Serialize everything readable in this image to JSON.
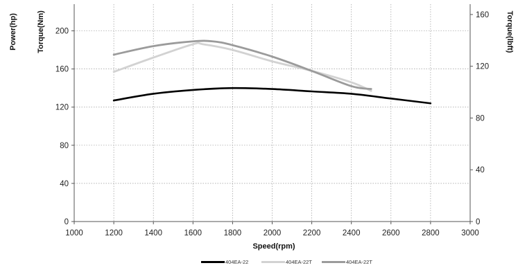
{
  "chart_data": {
    "type": "line",
    "xlabel": "Speed(rpm)",
    "ylabel_outer": "Power(hp)",
    "ylabel_left": "Torque(Nm)",
    "ylabel_right": "Torque(lbft)",
    "xlim": [
      1000,
      3000
    ],
    "x_ticks": [
      1000,
      1200,
      1400,
      1600,
      1800,
      2000,
      2200,
      2400,
      2600,
      2800,
      3000
    ],
    "ylim_left": [
      0,
      228
    ],
    "y_ticks_left": [
      0,
      40,
      80,
      120,
      160,
      200
    ],
    "ylim_right": [
      0,
      168
    ],
    "y_ticks_right": [
      0,
      40,
      80,
      120,
      160
    ],
    "grid": true,
    "legend_position": "bottom",
    "series": [
      {
        "name": "404EA-22",
        "color": "#000000",
        "width": 2.6,
        "x": [
          1200,
          1400,
          1600,
          1800,
          2000,
          2200,
          2400,
          2600,
          2800
        ],
        "y": [
          127,
          134,
          138,
          140,
          139,
          136.5,
          134,
          129,
          124
        ]
      },
      {
        "name": "404EA-22T",
        "color": "#d2d2d2",
        "width": 2.8,
        "x": [
          1200,
          1400,
          1600,
          1650,
          1800,
          2000,
          2200,
          2400,
          2500
        ],
        "y": [
          157,
          172,
          186,
          186,
          180,
          168,
          158,
          146,
          137
        ]
      },
      {
        "name": "404EA-22T",
        "color": "#9b9b9b",
        "width": 2.8,
        "x": [
          1200,
          1400,
          1600,
          1700,
          1800,
          2000,
          2200,
          2400,
          2500
        ],
        "y": [
          175,
          184,
          189,
          189,
          185,
          173,
          158,
          142,
          139
        ]
      }
    ]
  }
}
